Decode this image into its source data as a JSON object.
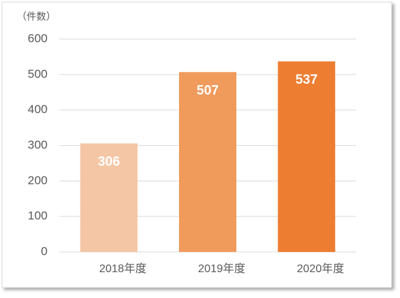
{
  "chart_data": {
    "type": "bar",
    "y_label": "（件数）",
    "categories": [
      "2018年度",
      "2019年度",
      "2020年度"
    ],
    "values": [
      306,
      507,
      537
    ],
    "colors": [
      "#f5c6a5",
      "#f09a5c",
      "#ed7d31"
    ],
    "ylim": [
      0,
      600
    ],
    "yticks": [
      0,
      100,
      200,
      300,
      400,
      500,
      600
    ],
    "grid": true
  }
}
